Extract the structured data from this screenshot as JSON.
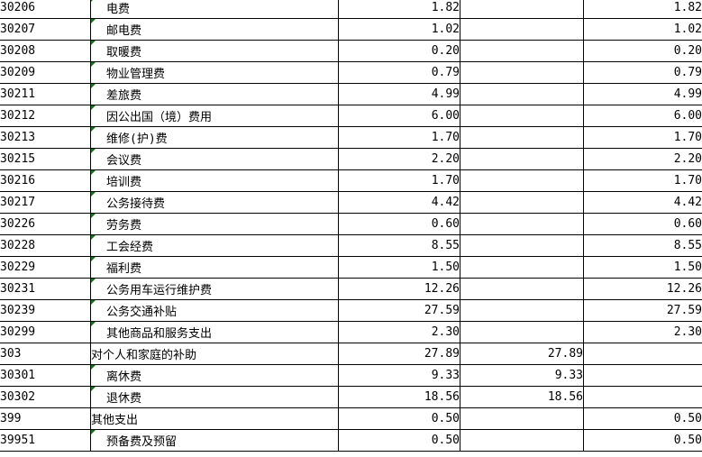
{
  "app": {
    "background_color": "#ffffff",
    "gridline_color": "#000000",
    "error_indicator_color": "#008000"
  },
  "table": {
    "columns": [
      "code",
      "item_name",
      "value_1",
      "value_2",
      "value_3"
    ],
    "rows": [
      {
        "code": "30206",
        "name": "电费",
        "indent": true,
        "marker": true,
        "v1": "1.82",
        "v2": "",
        "v3": "1.82"
      },
      {
        "code": "30207",
        "name": "邮电费",
        "indent": true,
        "marker": true,
        "v1": "1.02",
        "v2": "",
        "v3": "1.02"
      },
      {
        "code": "30208",
        "name": "取暖费",
        "indent": true,
        "marker": true,
        "v1": "0.20",
        "v2": "",
        "v3": "0.20"
      },
      {
        "code": "30209",
        "name": "物业管理费",
        "indent": true,
        "marker": true,
        "v1": "0.79",
        "v2": "",
        "v3": "0.79"
      },
      {
        "code": "30211",
        "name": "差旅费",
        "indent": true,
        "marker": true,
        "v1": "4.99",
        "v2": "",
        "v3": "4.99"
      },
      {
        "code": "30212",
        "name": "因公出国（境）费用",
        "indent": true,
        "marker": true,
        "v1": "6.00",
        "v2": "",
        "v3": "6.00"
      },
      {
        "code": "30213",
        "name": "维修(护)费",
        "indent": true,
        "marker": true,
        "v1": "1.70",
        "v2": "",
        "v3": "1.70"
      },
      {
        "code": "30215",
        "name": "会议费",
        "indent": true,
        "marker": true,
        "v1": "2.20",
        "v2": "",
        "v3": "2.20"
      },
      {
        "code": "30216",
        "name": "培训费",
        "indent": true,
        "marker": true,
        "v1": "1.70",
        "v2": "",
        "v3": "1.70"
      },
      {
        "code": "30217",
        "name": "公务接待费",
        "indent": true,
        "marker": true,
        "v1": "4.42",
        "v2": "",
        "v3": "4.42"
      },
      {
        "code": "30226",
        "name": "劳务费",
        "indent": true,
        "marker": true,
        "v1": "0.60",
        "v2": "",
        "v3": "0.60"
      },
      {
        "code": "30228",
        "name": "工会经费",
        "indent": true,
        "marker": true,
        "v1": "8.55",
        "v2": "",
        "v3": "8.55"
      },
      {
        "code": "30229",
        "name": "福利费",
        "indent": true,
        "marker": true,
        "v1": "1.50",
        "v2": "",
        "v3": "1.50"
      },
      {
        "code": "30231",
        "name": "公务用车运行维护费",
        "indent": true,
        "marker": true,
        "v1": "12.26",
        "v2": "",
        "v3": "12.26"
      },
      {
        "code": "30239",
        "name": "公务交通补贴",
        "indent": true,
        "marker": true,
        "v1": "27.59",
        "v2": "",
        "v3": "27.59"
      },
      {
        "code": "30299",
        "name": "其他商品和服务支出",
        "indent": true,
        "marker": true,
        "v1": "2.30",
        "v2": "",
        "v3": "2.30"
      },
      {
        "code": "303",
        "name": "对个人和家庭的补助",
        "indent": false,
        "marker": false,
        "v1": "27.89",
        "v2": "27.89",
        "v3": ""
      },
      {
        "code": "30301",
        "name": "离休费",
        "indent": true,
        "marker": true,
        "v1": "9.33",
        "v2": "9.33",
        "v3": ""
      },
      {
        "code": "30302",
        "name": "退休费",
        "indent": true,
        "marker": true,
        "v1": "18.56",
        "v2": "18.56",
        "v3": ""
      },
      {
        "code": "399",
        "name": "其他支出",
        "indent": false,
        "marker": false,
        "v1": "0.50",
        "v2": "",
        "v3": "0.50"
      },
      {
        "code": "39951",
        "name": "预备费及预留",
        "indent": true,
        "marker": true,
        "v1": "0.50",
        "v2": "",
        "v3": "0.50"
      }
    ]
  }
}
